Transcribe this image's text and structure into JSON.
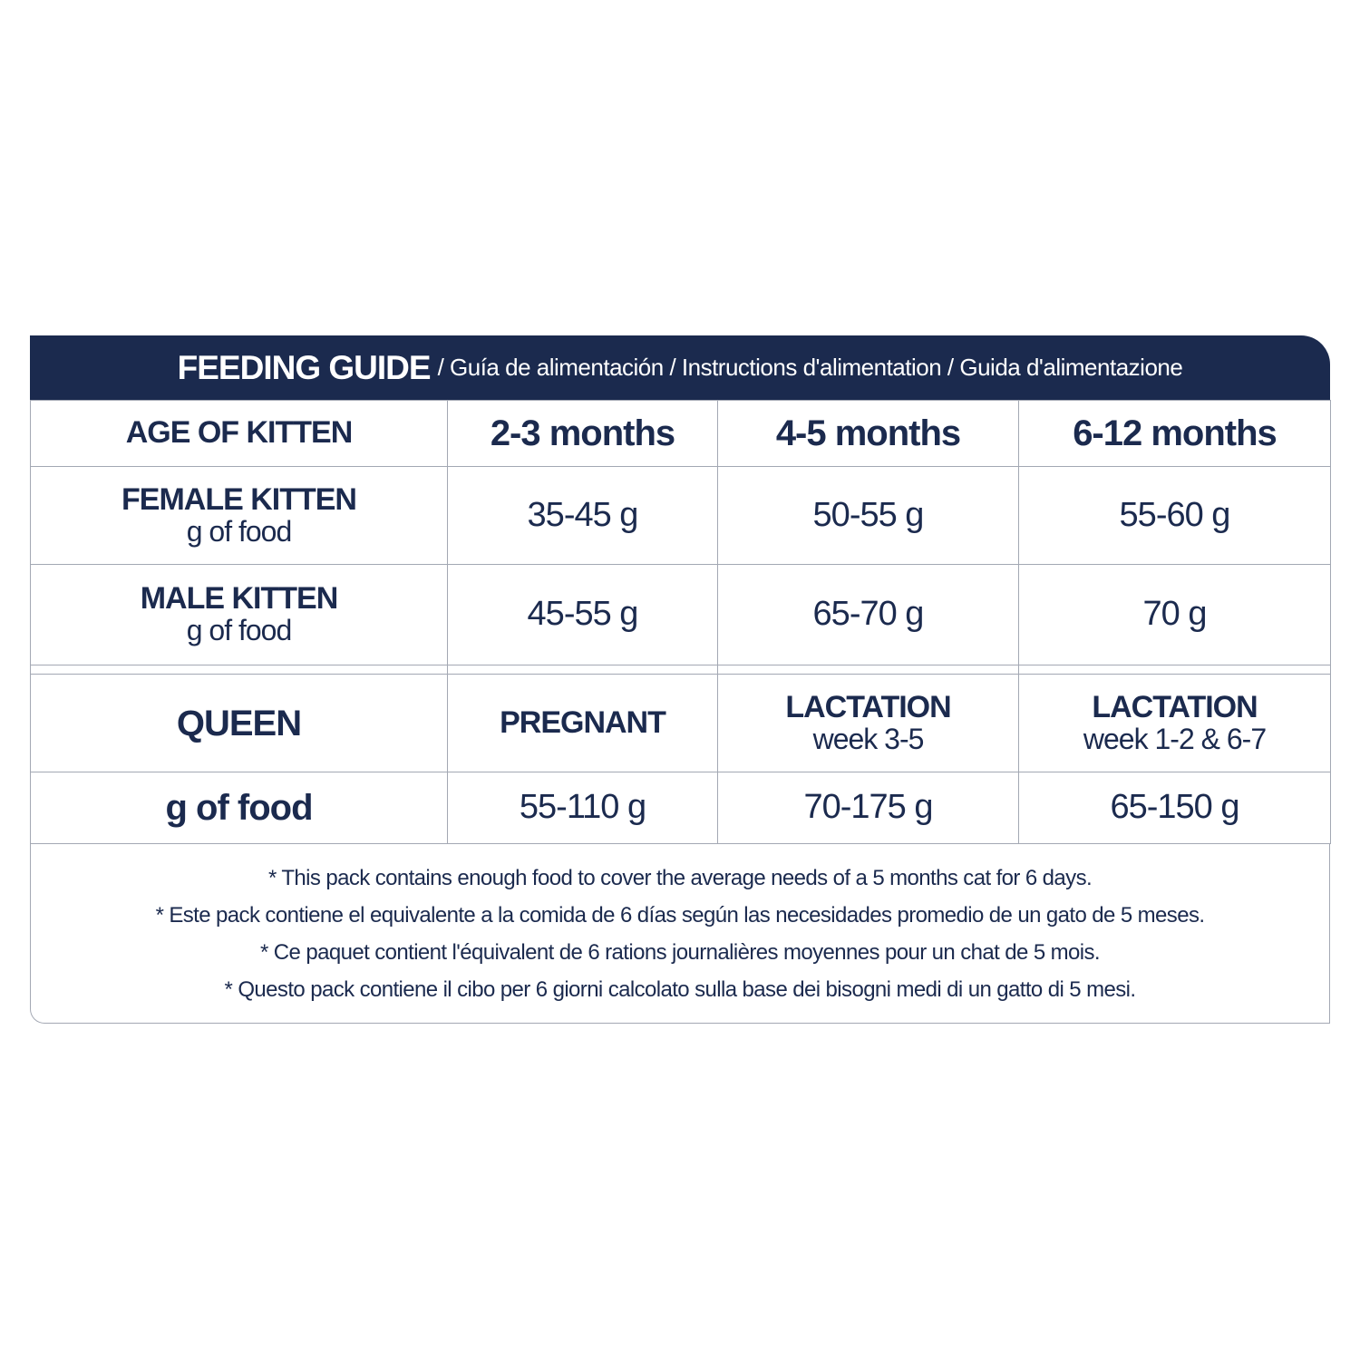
{
  "header": {
    "title": "FEEDING GUIDE",
    "subtitle": "/ Guía de alimentación / Instructions d'alimentation / Guida d'alimentazione"
  },
  "table": {
    "columns": [
      "AGE OF KITTEN",
      "2-3 months",
      "4-5 months",
      "6-12 months"
    ],
    "kitten_rows": [
      {
        "label": "FEMALE KITTEN",
        "unit": "g of food",
        "values": [
          "35-45 g",
          "50-55 g",
          "55-60 g"
        ]
      },
      {
        "label": "MALE KITTEN",
        "unit": "g of food",
        "values": [
          "45-55 g",
          "65-70 g",
          "70 g"
        ]
      }
    ],
    "queen_header": {
      "label": "QUEEN",
      "stages": [
        {
          "name": "PREGNANT"
        },
        {
          "name": "LACTATION",
          "detail": "week 3-5"
        },
        {
          "name": "LACTATION",
          "detail": "week 1-2 & 6-7"
        }
      ]
    },
    "queen_row": {
      "label": "g of food",
      "values": [
        "55-110 g",
        "70-175 g",
        "65-150 g"
      ]
    }
  },
  "notes": [
    "* This pack contains enough food to cover the average needs of a 5 months cat for 6 days.",
    "* Este pack contiene el equivalente a la comida de 6 días según las necesidades promedio de un gato de 5 meses.",
    "* Ce paquet contient l'équivalent de 6 rations journalières moyennes pour un chat de 5 mois.",
    "* Questo pack contiene il cibo per 6 giorni calcolato sulla base dei bisogni medi di un gatto di 5 mesi."
  ]
}
